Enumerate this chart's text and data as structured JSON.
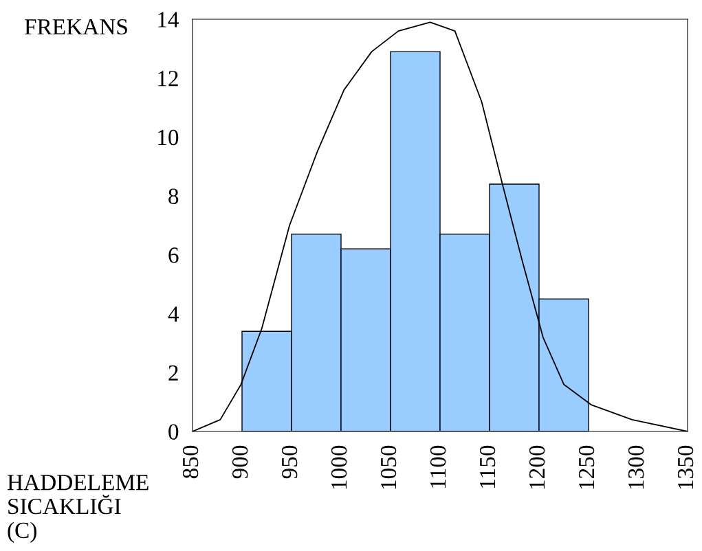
{
  "chart_data": {
    "type": "histogram",
    "xlabel": "HADDELEME\nSICAKLIĞI\n(C)",
    "ylabel": "FREKANS",
    "bins": [
      900,
      950,
      1000,
      1050,
      1100,
      1150,
      1200,
      1250
    ],
    "values": [
      3.4,
      6.7,
      6.2,
      12.9,
      6.7,
      8.4,
      4.5
    ],
    "color": "#99ccff",
    "series": [
      {
        "type": "line",
        "color": "#000000",
        "x": [
          850,
          878,
          899,
          920,
          948,
          976,
          1003,
          1031,
          1058,
          1090,
          1115,
          1142,
          1163,
          1183,
          1204,
          1225,
          1253,
          1294,
          1350
        ],
        "values": [
          0,
          0.4,
          1.6,
          3.5,
          7,
          9.5,
          11.6,
          12.9,
          13.6,
          13.9,
          13.6,
          11.2,
          8.4,
          5.8,
          3.2,
          1.6,
          0.9,
          0.4,
          0
        ]
      }
    ],
    "xlim": [
      850,
      1350
    ],
    "xticks": [
      850,
      900,
      950,
      1000,
      1050,
      1100,
      1150,
      1200,
      1250,
      1300,
      1350
    ],
    "ylim": [
      0,
      14
    ],
    "yticks": [
      0,
      2,
      4,
      6,
      8,
      10,
      12,
      14
    ],
    "grid": false,
    "legend": false
  }
}
